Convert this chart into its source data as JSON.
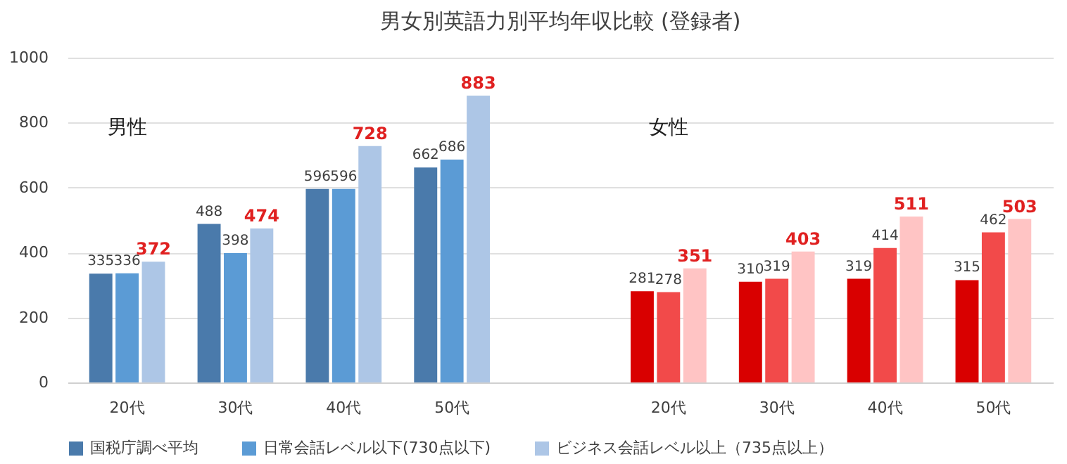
{
  "chart_data": {
    "type": "bar",
    "title": "男女別英語力別平均年収比較 (登録者)",
    "categories": [
      "20代",
      "30代",
      "40代",
      "50代",
      null,
      "20代",
      "30代",
      "40代",
      "50代"
    ],
    "series": [
      {
        "name": "国税庁調べ平均",
        "color": "#4a7aab",
        "colors": [
          "#4a7aab",
          "#4a7aab",
          "#4a7aab",
          "#4a7aab",
          "#4a7aab",
          "#d90000",
          "#d90000",
          "#d90000",
          "#d90000"
        ],
        "values": [
          335,
          488,
          596,
          662,
          null,
          281,
          310,
          319,
          315
        ]
      },
      {
        "name": "日常会話レベル以下(730点以下)",
        "color": "#5b9bd5",
        "colors": [
          "#5b9bd5",
          "#5b9bd5",
          "#5b9bd5",
          "#5b9bd5",
          "#5b9bd5",
          "#f24a4a",
          "#f24a4a",
          "#f24a4a",
          "#f24a4a"
        ],
        "values": [
          336,
          398,
          596,
          686,
          null,
          278,
          319,
          414,
          462
        ]
      },
      {
        "name": "ビジネス会話レベル以上（735点以上）",
        "color": "#adc6e6",
        "colors": [
          "#adc6e6",
          "#adc6e6",
          "#adc6e6",
          "#adc6e6",
          "#adc6e6",
          "#ffc4c4",
          "#ffc4c4",
          "#ffc4c4",
          "#ffc4c4"
        ],
        "values": [
          372,
          474,
          728,
          883,
          null,
          351,
          403,
          511,
          503
        ]
      }
    ],
    "annotations": [
      "男性",
      "女性"
    ],
    "ylim": [
      0,
      1000
    ],
    "yticks": [
      0,
      200,
      400,
      600,
      800,
      1000
    ],
    "grid": "y",
    "legend": "bottom",
    "data_labels": true
  }
}
